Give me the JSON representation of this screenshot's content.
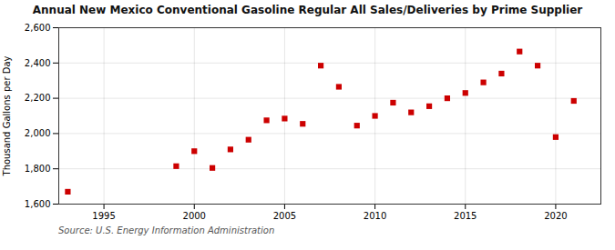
{
  "chart_data": {
    "type": "scatter",
    "title": "Annual New Mexico Conventional Gasoline Regular All Sales/Deliveries by Prime Supplier",
    "ylabel": "Thousand Gallons per Day",
    "source": "Source: U.S. Energy Information Administration",
    "x": [
      1993,
      1999,
      2000,
      2001,
      2002,
      2003,
      2004,
      2005,
      2006,
      2007,
      2008,
      2009,
      2010,
      2011,
      2012,
      2013,
      2014,
      2015,
      2016,
      2017,
      2018,
      2019,
      2020,
      2021
    ],
    "values": [
      1670,
      1815,
      1900,
      1805,
      1910,
      1965,
      2075,
      2085,
      2055,
      2385,
      2265,
      2045,
      2100,
      2175,
      2120,
      2155,
      2200,
      2230,
      2290,
      2340,
      2465,
      2385,
      1980,
      2185
    ],
    "color": "#cc0000",
    "marker": "square",
    "xlim": [
      1992.5,
      2022.5
    ],
    "xticks": [
      1995,
      2000,
      2005,
      2010,
      2015,
      2020
    ],
    "ylim": [
      1600,
      2600
    ],
    "yticks": [
      {
        "value": 1600,
        "label": "1,600"
      },
      {
        "value": 1800,
        "label": "1,800"
      },
      {
        "value": 2000,
        "label": "2,000"
      },
      {
        "value": 2200,
        "label": "2,200"
      },
      {
        "value": 2400,
        "label": "2,400"
      },
      {
        "value": 2600,
        "label": "2,600"
      }
    ],
    "grid": true
  }
}
